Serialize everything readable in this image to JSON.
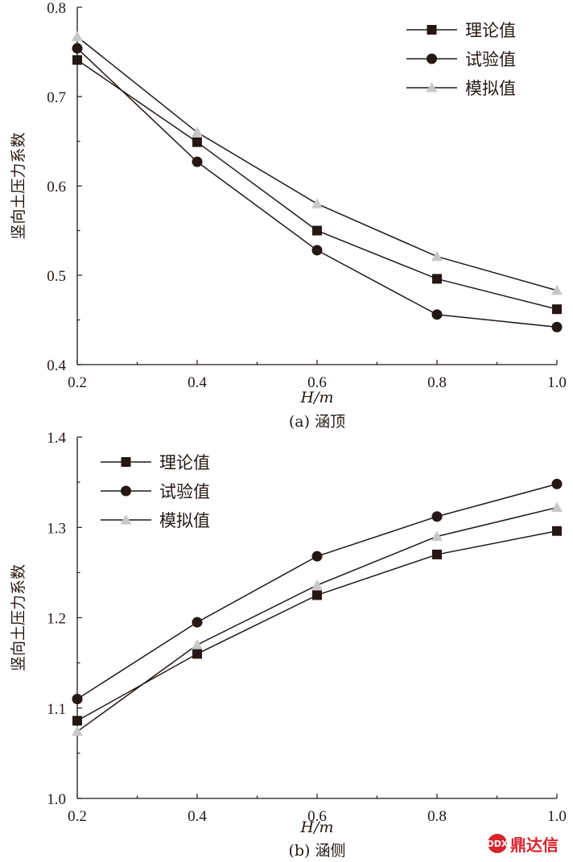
{
  "chart_data": [
    {
      "type": "line",
      "caption": "(a) 涵顶",
      "xlabel": "H/m",
      "ylabel": "竖向土压力系数",
      "x": [
        0.2,
        0.4,
        0.6,
        0.8,
        1.0
      ],
      "xlim": [
        0.2,
        1.0
      ],
      "ylim": [
        0.4,
        0.8
      ],
      "xticks": [
        "0.2",
        "0.4",
        "0.6",
        "0.8",
        "1.0"
      ],
      "yticks": [
        "0.4",
        "0.5",
        "0.6",
        "0.7",
        "0.8"
      ],
      "grid": false,
      "legend_position": "top-right",
      "series": [
        {
          "name": "理论值",
          "marker": "square",
          "color": "#231815",
          "values": [
            0.741,
            0.649,
            0.55,
            0.496,
            0.462
          ]
        },
        {
          "name": "试验值",
          "marker": "circle",
          "color": "#231815",
          "values": [
            0.754,
            0.627,
            0.528,
            0.456,
            0.442
          ]
        },
        {
          "name": "模拟值",
          "marker": "triangle",
          "color": "#c8c8c8",
          "values": [
            0.767,
            0.66,
            0.58,
            0.521,
            0.483
          ]
        }
      ]
    },
    {
      "type": "line",
      "caption": "(b) 涵侧",
      "xlabel": "H/m",
      "ylabel": "竖向土压力系数",
      "x": [
        0.2,
        0.4,
        0.6,
        0.8,
        1.0
      ],
      "xlim": [
        0.2,
        1.0
      ],
      "ylim": [
        1.0,
        1.4
      ],
      "xticks": [
        "0.2",
        "0.4",
        "0.6",
        "0.8",
        "1.0"
      ],
      "yticks": [
        "1.0",
        "1.1",
        "1.2",
        "1.3",
        "1.4"
      ],
      "grid": false,
      "legend_position": "top-left",
      "series": [
        {
          "name": "理论值",
          "marker": "square",
          "color": "#231815",
          "values": [
            1.086,
            1.16,
            1.225,
            1.27,
            1.296
          ]
        },
        {
          "name": "试验值",
          "marker": "circle",
          "color": "#231815",
          "values": [
            1.11,
            1.195,
            1.268,
            1.312,
            1.348
          ]
        },
        {
          "name": "模拟值",
          "marker": "triangle",
          "color": "#c8c8c8",
          "values": [
            1.074,
            1.17,
            1.236,
            1.29,
            1.322
          ]
        }
      ]
    }
  ],
  "watermark": {
    "text": "鼎达信",
    "logo_text": "DDX"
  }
}
